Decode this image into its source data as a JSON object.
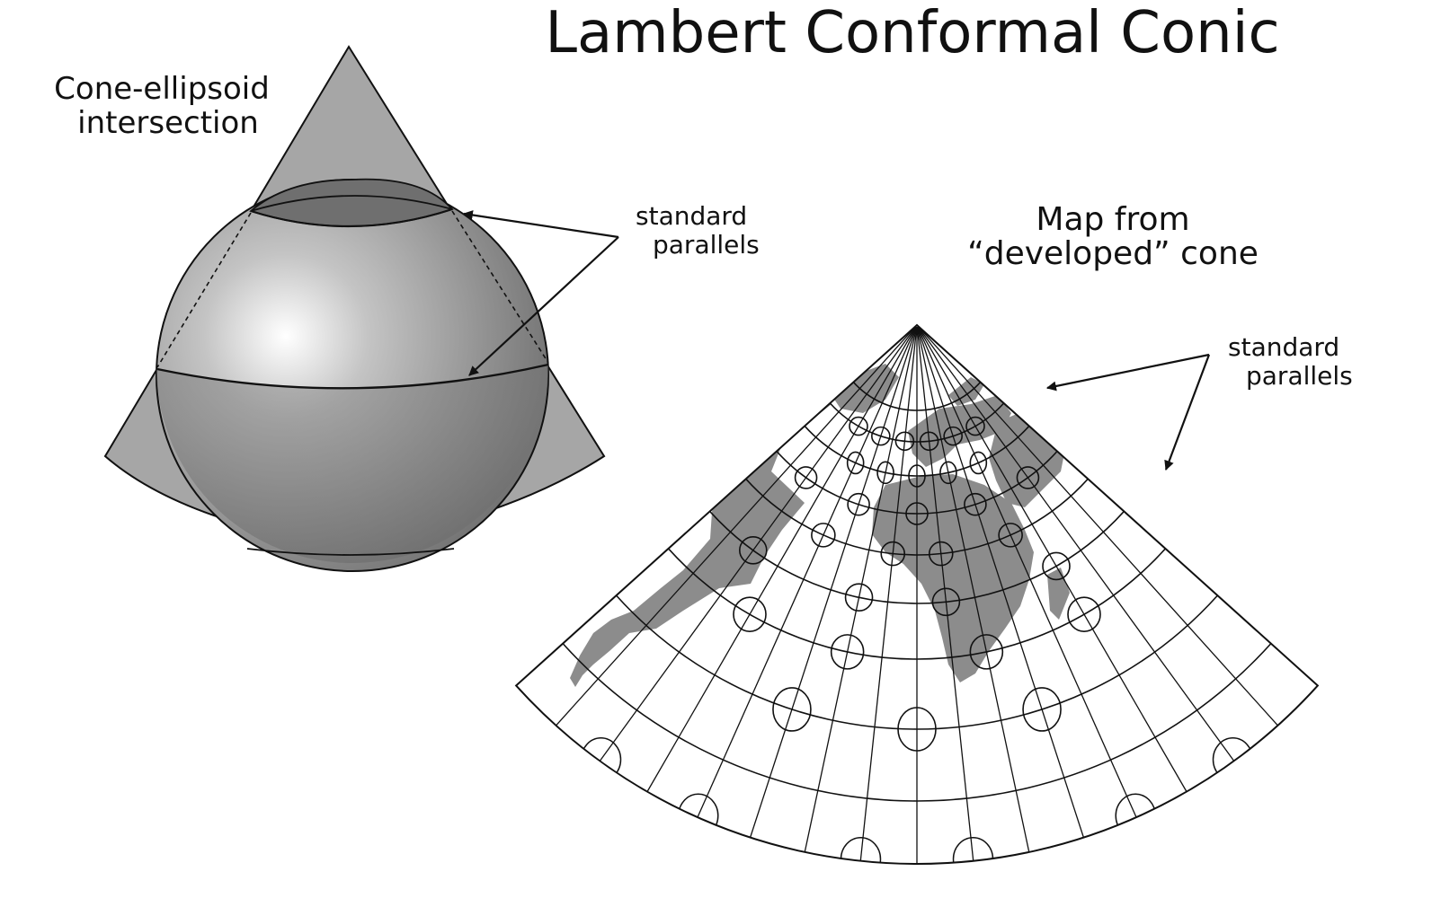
{
  "title": "Lambert Conformal Conic",
  "left_panel": {
    "caption_line1": "Cone-ellipsoid",
    "caption_line2": "intersection",
    "annotation_line1": "standard",
    "annotation_line2": "parallels"
  },
  "right_panel": {
    "caption_line1": "Map from",
    "caption_line2": "“developed” cone",
    "annotation_line1": "standard",
    "annotation_line2": "parallels"
  },
  "colors": {
    "ink": "#111111",
    "cone_fill": "#a6a6a6",
    "cone_flap_fill": "#d2d2d2",
    "sphere_highlight": "#ffffff",
    "sphere_mid": "#9a9a9a",
    "sphere_shadow": "#6a6a6a",
    "land": "#8c8c8c",
    "map_background": "#ffffff"
  },
  "icons": {
    "arrow": "arrow-icon",
    "tissot_indicatrix": "tissot-indicatrix-icon"
  }
}
